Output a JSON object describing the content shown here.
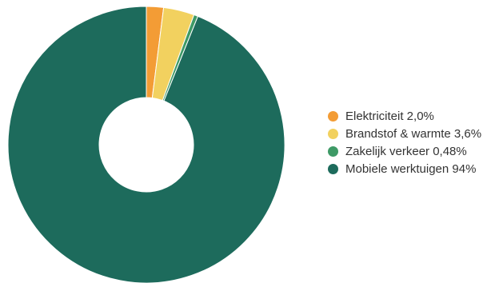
{
  "chart_data": {
    "type": "pie",
    "donut": true,
    "title": "",
    "slices": [
      {
        "label": "Elektriciteit 2,0%",
        "value": 2.0,
        "color": "#F39C35"
      },
      {
        "label": "Brandstof & warmte 3,6%",
        "value": 3.6,
        "color": "#F2D15F"
      },
      {
        "label": "Zakelijk verkeer 0,48%",
        "value": 0.48,
        "color": "#3E9A66"
      },
      {
        "label": "Mobiele werktuigen 94%",
        "value": 94.0,
        "color": "#1D6B5C"
      }
    ],
    "legend_position": "right",
    "start_angle": "top, clockwise"
  }
}
